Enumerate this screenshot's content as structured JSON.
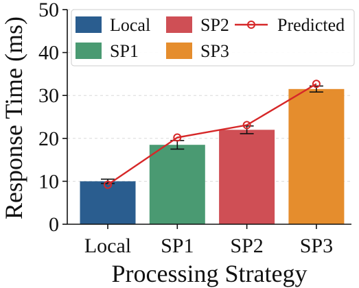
{
  "chart_data": {
    "type": "bar",
    "xlabel": "Processing Strategy",
    "ylabel": "Response Time (ms)",
    "ylim": [
      0,
      50
    ],
    "yticks": [
      0,
      10,
      20,
      30,
      40,
      50
    ],
    "categories": [
      "Local",
      "SP1",
      "SP2",
      "SP3"
    ],
    "values": [
      10.0,
      18.5,
      22.0,
      31.5
    ],
    "errors": [
      0.5,
      1.0,
      0.9,
      0.7
    ],
    "bar_colors": [
      "#2a5d8f",
      "#4a9a72",
      "#cf4f55",
      "#e58d2d"
    ],
    "grid": "horizontal dashed",
    "legend_position": "top",
    "predicted": {
      "name": "Predicted",
      "color": "#d62728",
      "values": [
        9.2,
        20.2,
        23.1,
        32.7
      ]
    },
    "legend": [
      {
        "label": "Local",
        "kind": "bar",
        "color": "#2a5d8f"
      },
      {
        "label": "SP2",
        "kind": "bar",
        "color": "#cf4f55"
      },
      {
        "label": "Predicted",
        "kind": "line",
        "color": "#d62728"
      },
      {
        "label": "SP1",
        "kind": "bar",
        "color": "#4a9a72"
      },
      {
        "label": "SP3",
        "kind": "bar",
        "color": "#e58d2d"
      }
    ]
  }
}
